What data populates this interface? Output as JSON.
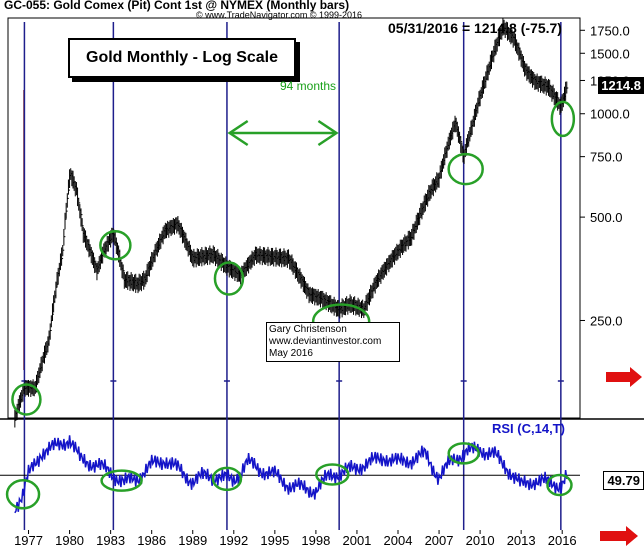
{
  "header": {
    "symbol_line": "GC-055:  Gold Comex (Pit) Cont 1st @ NYMEX  (Monthly bars)",
    "copyright": "© www.TradeNavigator.com © 1999-2016"
  },
  "title_box": "Gold Monthly - Log Scale",
  "last_value_line": "05/31/2016 = 1214.8 (-75.7)",
  "last_price_tag": "1214.8",
  "annotation": "94 months",
  "credit": [
    "Gary Christenson",
    "www.deviantinvestor.com",
    "May 2016"
  ],
  "rsi_label": "RSI (C,14,T)",
  "last_rsi_tag": "49.79",
  "colors": {
    "price_bars": "#000000",
    "rsi_line": "#1414c8",
    "cycle_lines": "#1e1e8c",
    "highlight": "#28a028",
    "arrow": "#e01010",
    "left_bar": "#a03018"
  },
  "chart_data": [
    {
      "type": "bar",
      "title": "Gold Monthly - Log Scale",
      "scale": "log",
      "ylim": [
        130,
        1850
      ],
      "xlim": [
        1975.5,
        2017.3
      ],
      "y_ticks": [
        1750.0,
        1500.0,
        1250.0,
        1000.0,
        750.0,
        500.0,
        250.0
      ],
      "x_ticks": [
        "1977",
        "1980",
        "1983",
        "1986",
        "1989",
        "1992",
        "1995",
        "1998",
        "2001",
        "2004",
        "2007",
        "2010",
        "2013",
        "2016"
      ],
      "series": [
        {
          "x": [
            1976.0,
            1976.7,
            1977.5,
            1978.5,
            1979.5,
            1980.05,
            1980.5,
            1981.0,
            1982.0,
            1982.5,
            1983.2,
            1984.0,
            1985.0,
            1985.5,
            1987.0,
            1987.9,
            1989.0,
            1990.5,
            1991.5,
            1992.5,
            1993.6,
            1994.5,
            1996.0,
            1997.5,
            1998.5,
            1999.7,
            2000.5,
            2001.5,
            2002.5,
            2004.0,
            2005.0,
            2006.4,
            2007.0,
            2008.2,
            2008.8,
            2009.5,
            2010.5,
            2011.7,
            2012.5,
            2013.3,
            2014.0,
            2015.0,
            2015.9,
            2016.4
          ],
          "values": [
            130,
            160,
            160,
            220,
            400,
            675,
            600,
            450,
            350,
            400,
            450,
            330,
            320,
            330,
            460,
            480,
            380,
            390,
            360,
            340,
            390,
            385,
            380,
            300,
            290,
            270,
            280,
            270,
            330,
            400,
            440,
            600,
            650,
            950,
            750,
            950,
            1300,
            1800,
            1650,
            1350,
            1250,
            1200,
            1050,
            1215
          ]
        }
      ]
    },
    {
      "type": "line",
      "title": "RSI (C,14,T)",
      "last_value": 49.79,
      "reference_level": 49.79,
      "series": [
        {
          "name": "RSI (C,14,T)",
          "x": [
            1976.0,
            1976.6,
            1977.0,
            1978.0,
            1979.0,
            1980.0,
            1980.8,
            1982.0,
            1983.0,
            1984.0,
            1985.0,
            1986.0,
            1987.0,
            1988.0,
            1989.0,
            1990.0,
            1991.0,
            1992.0,
            1993.0,
            1994.0,
            1995.0,
            1996.0,
            1997.0,
            1998.0,
            1999.0,
            2000.0,
            2001.0,
            2002.0,
            2003.0,
            2004.0,
            2005.0,
            2006.0,
            2007.0,
            2008.0,
            2009.0,
            2010.0,
            2011.0,
            2012.0,
            2013.0,
            2014.0,
            2015.0,
            2015.9,
            2016.4
          ],
          "values": [
            25,
            35,
            50,
            68,
            72,
            78,
            62,
            58,
            52,
            44,
            48,
            58,
            62,
            54,
            45,
            50,
            48,
            46,
            60,
            54,
            50,
            42,
            40,
            38,
            50,
            52,
            56,
            60,
            64,
            60,
            62,
            66,
            48,
            62,
            68,
            70,
            66,
            55,
            42,
            46,
            44,
            42,
            50
          ]
        }
      ]
    }
  ]
}
